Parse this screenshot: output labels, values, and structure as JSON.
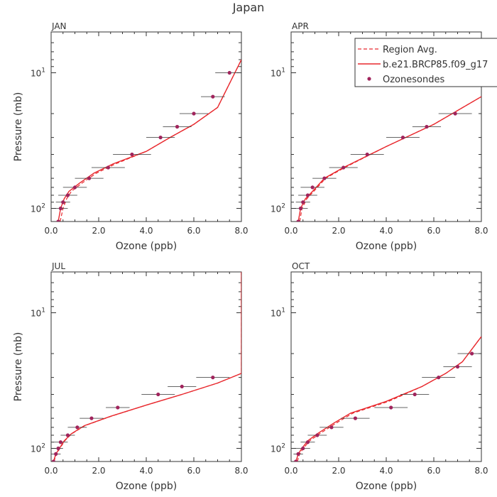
{
  "chart_data": {
    "type": "line",
    "title": "Japan",
    "xlabel": "Ozone (ppb)",
    "ylabel": "Pressure (mb)",
    "xlim": [
      0,
      8
    ],
    "ylim_log": [
      125,
      5
    ],
    "x_tick_labels": [
      "0.0",
      "2.0",
      "4.0",
      "6.0",
      "8.0"
    ],
    "x_ticks": [
      0,
      2,
      4,
      6,
      8
    ],
    "y_tick_labels": [
      "10¹",
      "10²"
    ],
    "y_ticks": [
      10,
      100
    ],
    "y_tick_label_parts": [
      {
        "base": "10",
        "exp": "1"
      },
      {
        "base": "10",
        "exp": "2"
      }
    ],
    "legend": {
      "placement": "top-right",
      "entries": [
        {
          "label": "Region Avg.",
          "style": "dashed-line"
        },
        {
          "label": "b.e21.BRCP85.f09_g17",
          "style": "solid-line"
        },
        {
          "label": "Ozonesondes",
          "style": "dot"
        }
      ]
    },
    "colors": {
      "model": "#e8282d",
      "obs": "#a0245c",
      "axis": "#333333",
      "errorbar": "#333333"
    },
    "panels": [
      {
        "title": "JAN",
        "model": [
          [
            0.3,
            125
          ],
          [
            0.4,
            100
          ],
          [
            0.55,
            85
          ],
          [
            0.75,
            75
          ],
          [
            1.2,
            65
          ],
          [
            1.8,
            55
          ],
          [
            2.6,
            47
          ],
          [
            4.0,
            38
          ],
          [
            5.0,
            30
          ],
          [
            6.0,
            24
          ],
          [
            7.0,
            18
          ],
          [
            8.0,
            8
          ]
        ],
        "regional": [
          [
            0.38,
            125
          ],
          [
            0.5,
            100
          ],
          [
            0.65,
            85
          ],
          [
            0.85,
            75
          ],
          [
            1.3,
            65
          ],
          [
            1.9,
            55
          ],
          [
            2.7,
            47
          ],
          [
            4.0,
            38
          ],
          [
            5.0,
            30
          ],
          [
            6.0,
            24
          ],
          [
            7.0,
            18
          ],
          [
            8.0,
            8
          ]
        ],
        "obs": [
          {
            "x": 0.3,
            "p": 125,
            "err": 0.2
          },
          {
            "x": 0.4,
            "p": 100,
            "err": 0.3
          },
          {
            "x": 0.5,
            "p": 90,
            "err": 0.3
          },
          {
            "x": 0.7,
            "p": 80,
            "err": 0.4
          },
          {
            "x": 1.0,
            "p": 70,
            "err": 0.5
          },
          {
            "x": 1.6,
            "p": 60,
            "err": 0.6
          },
          {
            "x": 2.4,
            "p": 50,
            "err": 0.7
          },
          {
            "x": 3.4,
            "p": 40,
            "err": 0.8
          },
          {
            "x": 4.6,
            "p": 30,
            "err": 0.6
          },
          {
            "x": 5.3,
            "p": 25,
            "err": 0.6
          },
          {
            "x": 6.0,
            "p": 20,
            "err": 0.6
          },
          {
            "x": 6.8,
            "p": 15,
            "err": 0.5
          },
          {
            "x": 7.5,
            "p": 10,
            "err": 0.6
          }
        ]
      },
      {
        "title": "APR",
        "model": [
          [
            0.3,
            125
          ],
          [
            0.4,
            100
          ],
          [
            0.6,
            85
          ],
          [
            0.9,
            75
          ],
          [
            1.4,
            60
          ],
          [
            2.2,
            50
          ],
          [
            4.0,
            35
          ],
          [
            6.0,
            24
          ],
          [
            8.0,
            15
          ]
        ],
        "regional": [
          [
            0.36,
            125
          ],
          [
            0.46,
            100
          ],
          [
            0.66,
            85
          ],
          [
            0.95,
            75
          ],
          [
            1.45,
            60
          ],
          [
            2.25,
            50
          ],
          [
            4.0,
            35
          ],
          [
            6.0,
            24
          ],
          [
            8.0,
            15
          ]
        ],
        "obs": [
          {
            "x": 0.3,
            "p": 125,
            "err": 0.2
          },
          {
            "x": 0.4,
            "p": 100,
            "err": 0.3
          },
          {
            "x": 0.5,
            "p": 90,
            "err": 0.3
          },
          {
            "x": 0.7,
            "p": 80,
            "err": 0.4
          },
          {
            "x": 0.9,
            "p": 70,
            "err": 0.5
          },
          {
            "x": 1.4,
            "p": 60,
            "err": 0.5
          },
          {
            "x": 2.2,
            "p": 50,
            "err": 0.6
          },
          {
            "x": 3.2,
            "p": 40,
            "err": 0.7
          },
          {
            "x": 4.7,
            "p": 30,
            "err": 0.7
          },
          {
            "x": 5.7,
            "p": 25,
            "err": 0.6
          },
          {
            "x": 6.9,
            "p": 20,
            "err": 0.7
          }
        ]
      },
      {
        "title": "JUL",
        "model": [
          [
            0.1,
            125
          ],
          [
            0.2,
            110
          ],
          [
            0.35,
            100
          ],
          [
            0.55,
            88
          ],
          [
            0.85,
            78
          ],
          [
            1.4,
            68
          ],
          [
            2.5,
            58
          ],
          [
            4.0,
            48
          ],
          [
            5.5,
            40
          ],
          [
            7.0,
            33
          ],
          [
            8.0,
            28
          ],
          [
            8.0,
            5
          ]
        ],
        "regional": [
          [
            0.12,
            125
          ],
          [
            0.22,
            110
          ],
          [
            0.37,
            100
          ],
          [
            0.57,
            88
          ],
          [
            0.87,
            78
          ],
          [
            1.42,
            68
          ],
          [
            2.52,
            58
          ],
          [
            4.0,
            48
          ],
          [
            5.5,
            40
          ],
          [
            7.0,
            33
          ],
          [
            8.0,
            28
          ],
          [
            8.0,
            5
          ]
        ],
        "obs": [
          {
            "x": 0.1,
            "p": 125,
            "err": 0.1
          },
          {
            "x": 0.2,
            "p": 110,
            "err": 0.2
          },
          {
            "x": 0.3,
            "p": 100,
            "err": 0.2
          },
          {
            "x": 0.4,
            "p": 90,
            "err": 0.3
          },
          {
            "x": 0.7,
            "p": 80,
            "err": 0.3
          },
          {
            "x": 1.1,
            "p": 70,
            "err": 0.4
          },
          {
            "x": 1.7,
            "p": 60,
            "err": 0.5
          },
          {
            "x": 2.8,
            "p": 50,
            "err": 0.5
          },
          {
            "x": 4.5,
            "p": 40,
            "err": 0.7
          },
          {
            "x": 5.5,
            "p": 35,
            "err": 0.6
          },
          {
            "x": 6.8,
            "p": 30,
            "err": 0.7
          }
        ]
      },
      {
        "title": "OCT",
        "model": [
          [
            0.2,
            125
          ],
          [
            0.3,
            110
          ],
          [
            0.45,
            100
          ],
          [
            0.7,
            88
          ],
          [
            1.1,
            78
          ],
          [
            1.8,
            65
          ],
          [
            2.5,
            55
          ],
          [
            4.0,
            45
          ],
          [
            5.5,
            35
          ],
          [
            6.5,
            28
          ],
          [
            7.2,
            23
          ],
          [
            8.0,
            15
          ]
        ],
        "regional": [
          [
            0.26,
            125
          ],
          [
            0.36,
            110
          ],
          [
            0.51,
            100
          ],
          [
            0.78,
            88
          ],
          [
            1.2,
            78
          ],
          [
            1.9,
            65
          ],
          [
            2.6,
            55
          ],
          [
            4.1,
            45
          ],
          [
            5.5,
            35
          ],
          [
            6.5,
            28
          ],
          [
            7.2,
            23
          ],
          [
            8.0,
            15
          ]
        ],
        "obs": [
          {
            "x": 0.2,
            "p": 125,
            "err": 0.1
          },
          {
            "x": 0.3,
            "p": 110,
            "err": 0.2
          },
          {
            "x": 0.5,
            "p": 100,
            "err": 0.3
          },
          {
            "x": 0.7,
            "p": 90,
            "err": 0.3
          },
          {
            "x": 1.1,
            "p": 80,
            "err": 0.4
          },
          {
            "x": 1.7,
            "p": 70,
            "err": 0.5
          },
          {
            "x": 2.7,
            "p": 60,
            "err": 0.6
          },
          {
            "x": 4.2,
            "p": 50,
            "err": 0.7
          },
          {
            "x": 5.2,
            "p": 40,
            "err": 0.6
          },
          {
            "x": 6.2,
            "p": 30,
            "err": 0.7
          },
          {
            "x": 7.0,
            "p": 25,
            "err": 0.6
          },
          {
            "x": 7.6,
            "p": 20,
            "err": 0.6
          }
        ]
      }
    ]
  }
}
